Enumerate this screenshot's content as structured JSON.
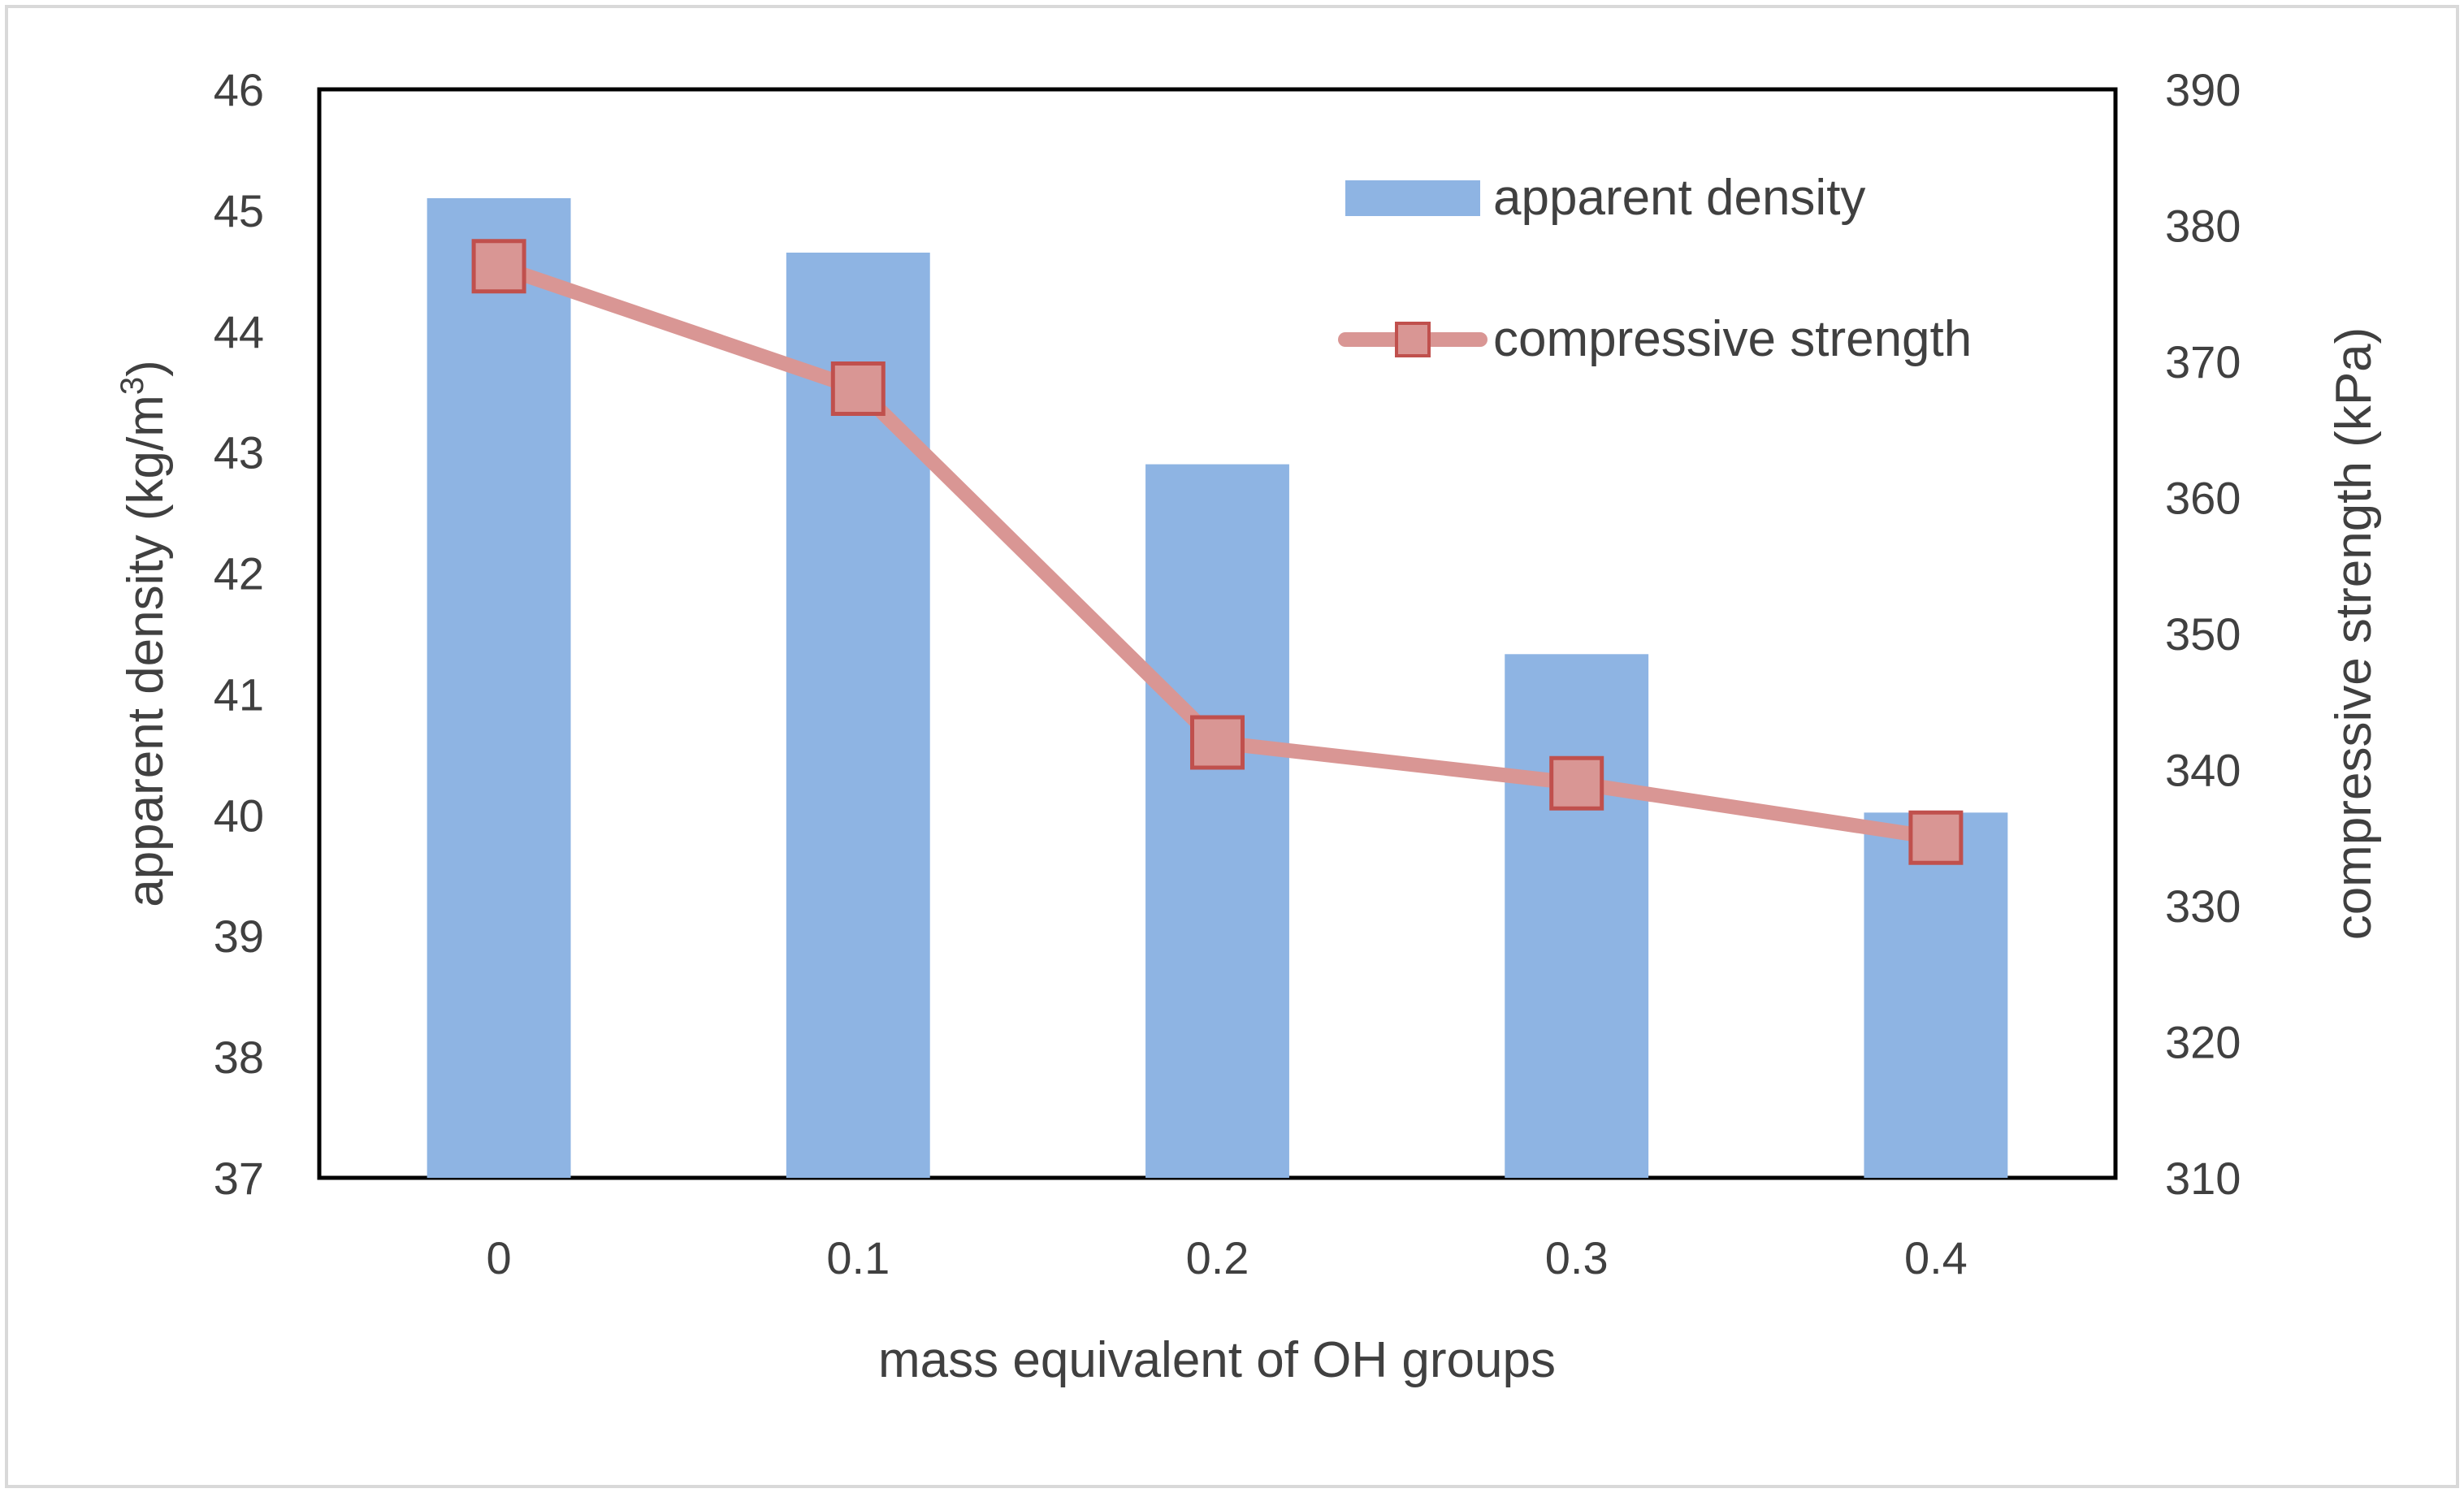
{
  "chart_data": {
    "type": "bar",
    "title": "",
    "categories": [
      "0",
      "0.1",
      "0.2",
      "0.3",
      "0.4"
    ],
    "xlabel": "mass equivalent of OH groups",
    "ylabel_main": "apparent density (kg/m",
    "ylabel_sup": "3",
    "ylabel_close": ")",
    "y2label": "compressive strength (kPa)",
    "ylim": [
      37,
      46
    ],
    "y2lim": [
      310,
      390
    ],
    "yticks": [
      "37",
      "38",
      "39",
      "40",
      "41",
      "42",
      "43",
      "44",
      "45",
      "46"
    ],
    "y2ticks": [
      "310",
      "320",
      "330",
      "340",
      "350",
      "360",
      "370",
      "380",
      "390"
    ],
    "series": [
      {
        "name": "apparent density",
        "kind": "bar",
        "axis": "left",
        "color": "#8EB4E3",
        "values": [
          45.1,
          44.65,
          42.9,
          41.33,
          40.02
        ]
      },
      {
        "name": "compressive strength",
        "kind": "line",
        "axis": "right",
        "color": "#D99694",
        "marker_stroke": "#C0504D",
        "values": [
          377,
          368,
          342,
          339,
          335
        ]
      }
    ],
    "legend": {
      "position": "top-right",
      "items": [
        "apparent density",
        "compressive strength"
      ]
    }
  }
}
